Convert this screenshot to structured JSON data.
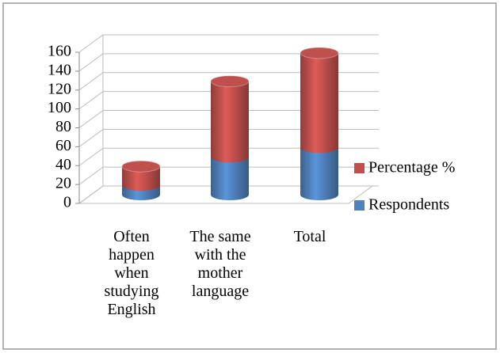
{
  "chart_data": {
    "type": "bar",
    "stacked": true,
    "shape": "cylinder",
    "categories": [
      "Often happen when studying English",
      "The same with the mother language",
      "Total"
    ],
    "series": [
      {
        "name": "Respondents",
        "color": "#4f81bd",
        "values": [
          10,
          40,
          50
        ]
      },
      {
        "name": "Percentage %",
        "color": "#c0504d",
        "values": [
          20,
          80,
          100
        ]
      }
    ],
    "ylim": [
      0,
      160
    ],
    "yticks": [
      0,
      20,
      40,
      60,
      80,
      100,
      120,
      140,
      160
    ],
    "grid": true,
    "legend": "right"
  }
}
